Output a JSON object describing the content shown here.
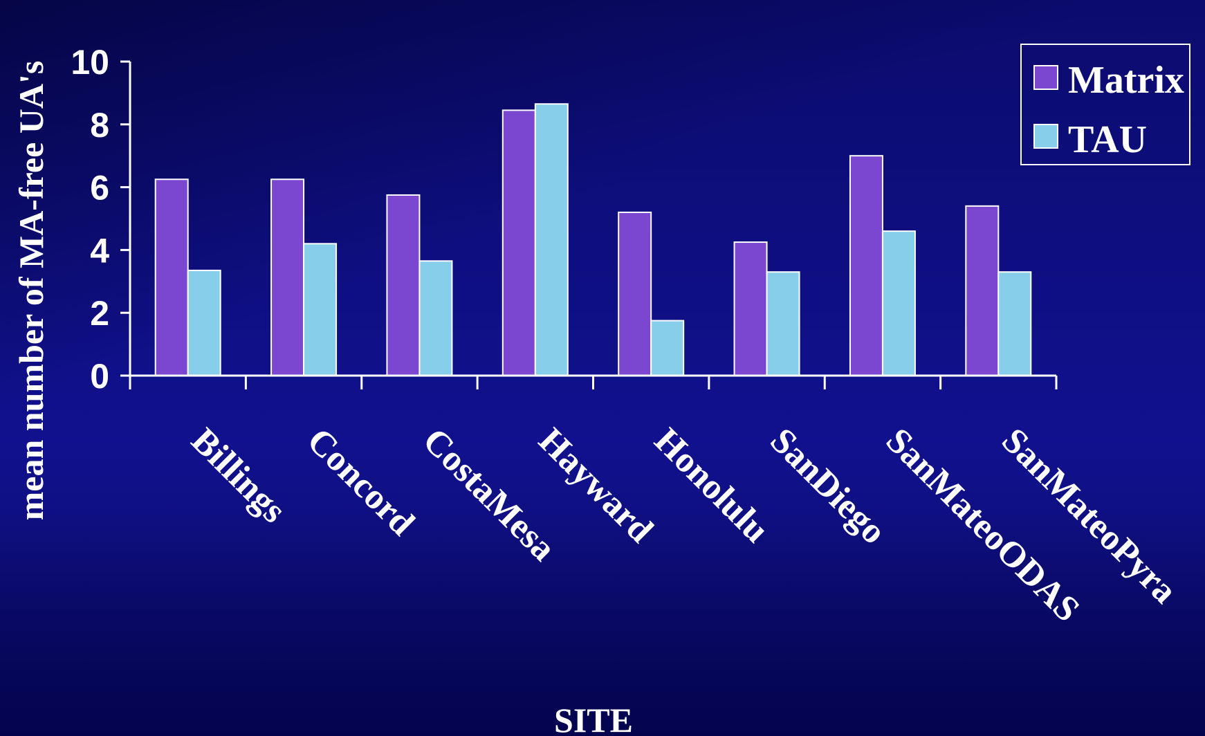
{
  "chart_data": {
    "type": "bar",
    "title": "",
    "xlabel": "SITE",
    "ylabel": "mean number of MA-free UA's",
    "ylim": [
      0,
      10
    ],
    "yticks": [
      "0",
      "2",
      "4",
      "6",
      "8",
      "10"
    ],
    "categories": [
      "Billings",
      "Concord",
      "CostaMesa",
      "Hayward",
      "Honolulu",
      "SanDiego",
      "SanMateoODAS",
      "SanMateoPyra"
    ],
    "series": [
      {
        "name": "Matrix",
        "color": "#7b46d0",
        "values": [
          6.25,
          6.25,
          5.75,
          8.45,
          5.2,
          4.25,
          7.0,
          5.4
        ]
      },
      {
        "name": "TAU",
        "color": "#87ceeb",
        "values": [
          3.35,
          4.2,
          3.65,
          8.65,
          1.75,
          3.3,
          4.6,
          3.3
        ]
      }
    ],
    "grid": false,
    "legend_position": "top-right"
  },
  "colors": {
    "background": "#0c0c7a",
    "axis": "#ffffff",
    "text": "#ffffff"
  }
}
